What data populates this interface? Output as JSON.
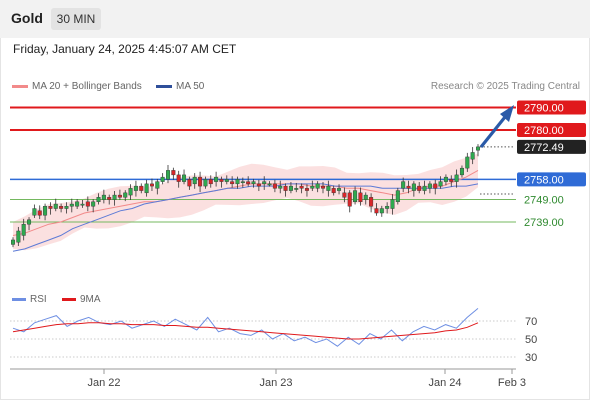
{
  "header": {
    "instrument": "Gold",
    "timeframe": "30 MIN"
  },
  "datetime": "Friday, January 24, 2025 4:45:07 AM CET",
  "legend": {
    "bollinger_label": "MA 20 + Bollinger Bands",
    "ma50_label": "MA 50",
    "rsi_label": "RSI",
    "rsi_ma_label": "9MA"
  },
  "credit": "Research © 2025 Trading Central",
  "colors": {
    "resistance": "#e0191c",
    "current": "#222222",
    "pivot": "#2f6bd6",
    "support": "#74b85f",
    "bullish": "#2fa84f",
    "bearish": "#d8262a",
    "ma20": "#f28a8a",
    "bands_fill": "#f9d6d6",
    "ma50": "#5d7bd6",
    "rsi": "#6e8fe3",
    "rsi_ma": "#e0191c",
    "arrow": "#2a5aa8"
  },
  "chart_data": {
    "type": "candlestick",
    "title": "Gold",
    "timeframe": "30 MIN",
    "ylim": [
      2724,
      2795
    ],
    "x_ticks": [
      "Jan 22",
      "Jan 23",
      "Jan 24",
      "Feb 3"
    ],
    "levels": [
      {
        "label": "2790.00",
        "value": 2790.0,
        "kind": "resistance"
      },
      {
        "label": "2780.00",
        "value": 2780.0,
        "kind": "resistance"
      },
      {
        "label": "2772.49",
        "value": 2772.49,
        "kind": "current"
      },
      {
        "label": "2758.00",
        "value": 2758.0,
        "kind": "pivot"
      },
      {
        "label": "2749.00",
        "value": 2749.0,
        "kind": "support"
      },
      {
        "label": "2739.00",
        "value": 2739.0,
        "kind": "support"
      }
    ],
    "price_path": [
      [
        2729,
        2731
      ],
      [
        2730,
        2735
      ],
      [
        2733,
        2738
      ],
      [
        2738,
        2740
      ],
      [
        2742,
        2745
      ],
      [
        2744,
        2742
      ],
      [
        2742,
        2746
      ],
      [
        2746,
        2745
      ],
      [
        2745,
        2747
      ],
      [
        2746,
        2745
      ],
      [
        2745,
        2746
      ],
      [
        2746,
        2747
      ],
      [
        2746,
        2748
      ],
      [
        2747,
        2747
      ],
      [
        2748,
        2746
      ],
      [
        2746,
        2748
      ],
      [
        2748,
        2750
      ],
      [
        2749,
        2751
      ],
      [
        2750,
        2749
      ],
      [
        2749,
        2751
      ],
      [
        2751,
        2750
      ],
      [
        2750,
        2752
      ],
      [
        2751,
        2754
      ],
      [
        2753,
        2755
      ],
      [
        2755,
        2753
      ],
      [
        2752,
        2756
      ],
      [
        2756,
        2755
      ],
      [
        2754,
        2757
      ],
      [
        2757,
        2759
      ],
      [
        2758,
        2762
      ],
      [
        2762,
        2760
      ],
      [
        2760,
        2757
      ],
      [
        2757,
        2760
      ],
      [
        2758,
        2755
      ],
      [
        2756,
        2759
      ],
      [
        2759,
        2755
      ],
      [
        2755,
        2758
      ],
      [
        2758,
        2756
      ],
      [
        2757,
        2759
      ],
      [
        2758,
        2757
      ],
      [
        2757,
        2758
      ],
      [
        2757,
        2756
      ],
      [
        2756,
        2758
      ],
      [
        2757,
        2757
      ],
      [
        2757,
        2756
      ],
      [
        2756,
        2757
      ],
      [
        2756,
        2755
      ],
      [
        2756,
        2757
      ],
      [
        2756,
        2756
      ],
      [
        2756,
        2754
      ],
      [
        2754,
        2755
      ],
      [
        2755,
        2753
      ],
      [
        2753,
        2755
      ],
      [
        2754,
        2754
      ],
      [
        2755,
        2754
      ],
      [
        2754,
        2753
      ],
      [
        2754,
        2755
      ],
      [
        2754,
        2756
      ],
      [
        2755,
        2754
      ],
      [
        2753,
        2755
      ],
      [
        2754,
        2752
      ],
      [
        2753,
        2754
      ],
      [
        2752,
        2750
      ],
      [
        2752,
        2746
      ],
      [
        2748,
        2753
      ],
      [
        2752,
        2748
      ],
      [
        2749,
        2751
      ],
      [
        2750,
        2746
      ],
      [
        2745,
        2743
      ],
      [
        2743,
        2745
      ],
      [
        2745,
        2746
      ],
      [
        2745,
        2749
      ],
      [
        2748,
        2753
      ],
      [
        2754,
        2757
      ],
      [
        2755,
        2754
      ],
      [
        2753,
        2756
      ],
      [
        2755,
        2753
      ],
      [
        2753,
        2755
      ],
      [
        2754,
        2756
      ],
      [
        2756,
        2754
      ],
      [
        2755,
        2757
      ],
      [
        2757,
        2759
      ],
      [
        2758,
        2757
      ],
      [
        2757,
        2760
      ],
      [
        2760,
        2763
      ],
      [
        2763,
        2768
      ],
      [
        2767,
        2770
      ],
      [
        2771,
        2772.49
      ]
    ],
    "series": [
      {
        "name": "MA 20 + Bollinger Bands",
        "values": [
          2733,
          2734,
          2736,
          2738,
          2739,
          2741,
          2743,
          2744,
          2745,
          2746,
          2747,
          2748,
          2748,
          2749,
          2750,
          2751,
          2752,
          2753,
          2754,
          2755,
          2756,
          2756,
          2756,
          2756,
          2756,
          2755,
          2755,
          2755,
          2754,
          2754,
          2753,
          2752,
          2751,
          2752,
          2754,
          2755,
          2755,
          2757,
          2759,
          2762
        ]
      },
      {
        "name": "MA 50",
        "values": [
          2726,
          2727,
          2729,
          2731,
          2733,
          2736,
          2738,
          2740,
          2742,
          2744,
          2745,
          2747,
          2748,
          2749,
          2750,
          2751,
          2752,
          2753,
          2754,
          2754,
          2755,
          2755,
          2755,
          2756,
          2756,
          2756,
          2756,
          2755,
          2755,
          2755,
          2755,
          2754,
          2754,
          2754,
          2754,
          2754,
          2754,
          2755,
          2755,
          2756
        ]
      }
    ],
    "rsi": {
      "levels": [
        70,
        50,
        30
      ],
      "rsi_values": [
        62,
        58,
        68,
        72,
        76,
        64,
        70,
        74,
        68,
        66,
        70,
        62,
        66,
        70,
        64,
        72,
        66,
        60,
        74,
        58,
        62,
        56,
        54,
        60,
        50,
        56,
        48,
        52,
        46,
        50,
        42,
        52,
        44,
        56,
        50,
        60,
        48,
        58,
        64,
        60,
        66,
        62,
        74,
        84
      ],
      "ma9_values": [
        58,
        60,
        62,
        64,
        66,
        67,
        67,
        68,
        68,
        67,
        67,
        66,
        66,
        66,
        65,
        65,
        64,
        63,
        63,
        62,
        61,
        60,
        59,
        58,
        57,
        56,
        55,
        54,
        53,
        52,
        51,
        50,
        50,
        51,
        52,
        53,
        54,
        55,
        56,
        57,
        59,
        60,
        63,
        68
      ]
    }
  }
}
